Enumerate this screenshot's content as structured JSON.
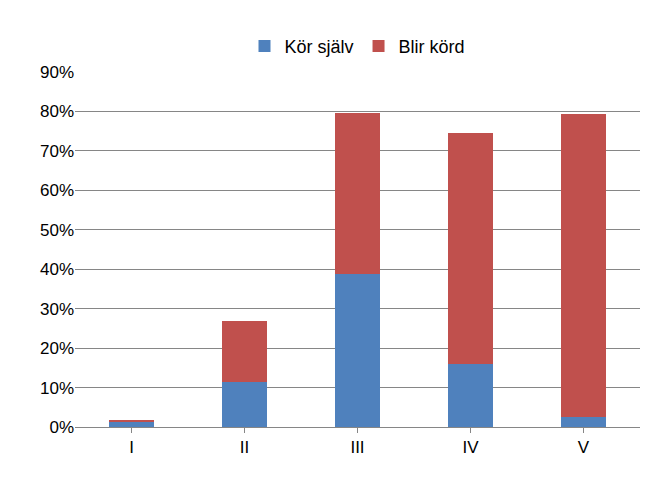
{
  "chart_data": {
    "type": "bar",
    "stacked": true,
    "categories": [
      "I",
      "II",
      "III",
      "IV",
      "V"
    ],
    "series": [
      {
        "name": "Kör själv",
        "color": "#4f81bd",
        "values": [
          1.2,
          11.5,
          38.7,
          16,
          2.5
        ]
      },
      {
        "name": "Blir körd",
        "color": "#c0504d",
        "values": [
          0.5,
          15.5,
          40.9,
          58.6,
          76.9
        ]
      }
    ],
    "ylim": [
      0,
      90
    ],
    "yticks": [
      {
        "value": 0,
        "label": "0%"
      },
      {
        "value": 10,
        "label": "10%"
      },
      {
        "value": 20,
        "label": "20%"
      },
      {
        "value": 30,
        "label": "30%"
      },
      {
        "value": 40,
        "label": "40%"
      },
      {
        "value": 50,
        "label": "50%"
      },
      {
        "value": 60,
        "label": "60%"
      },
      {
        "value": 70,
        "label": "70%"
      },
      {
        "value": 80,
        "label": "80%"
      },
      {
        "value": 90,
        "label": "90%"
      }
    ],
    "grid": true,
    "legend": "top"
  }
}
